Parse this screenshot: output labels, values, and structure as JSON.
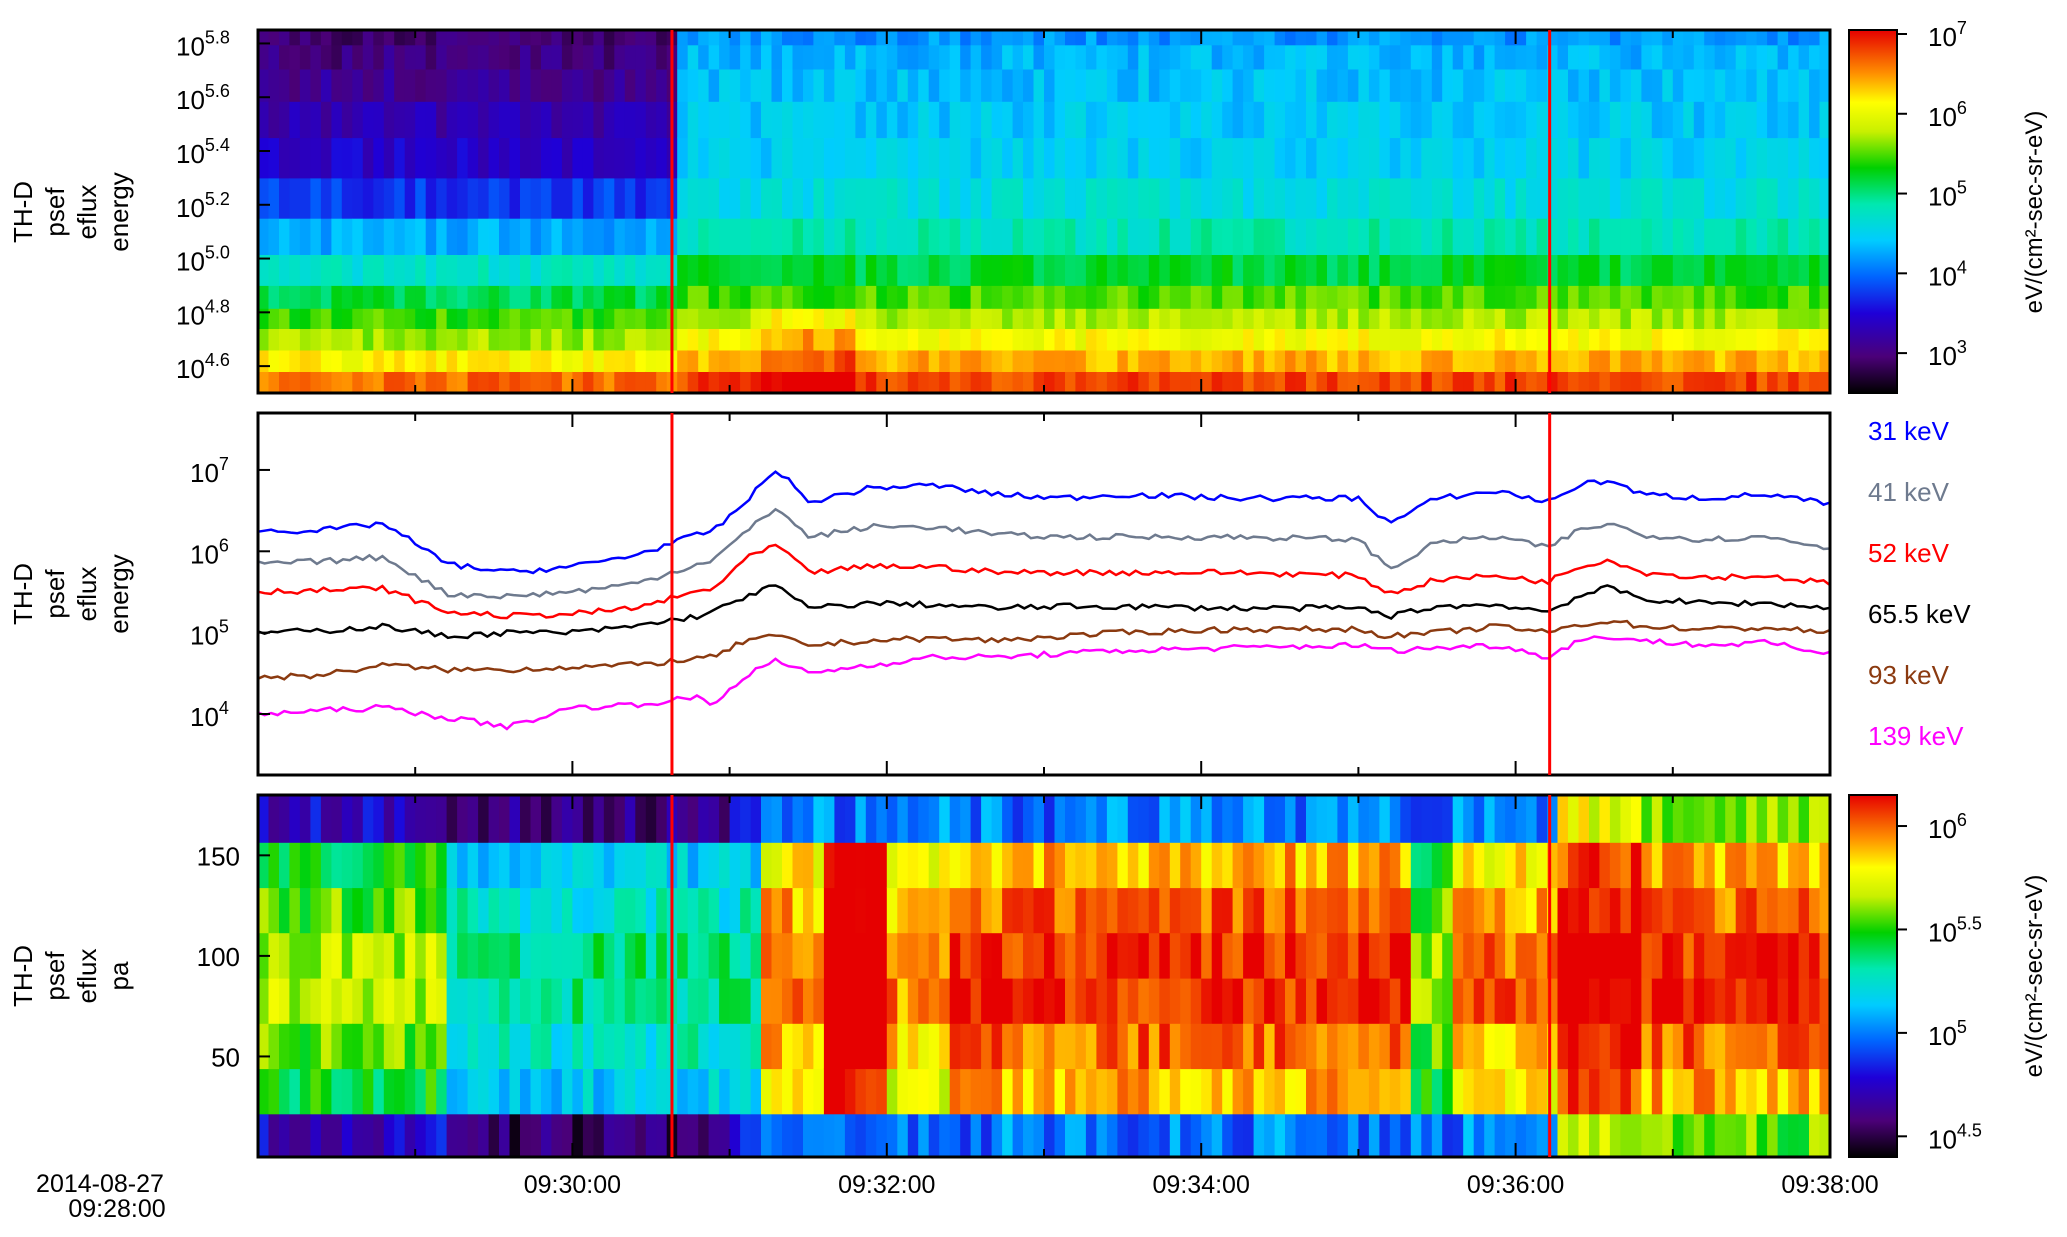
{
  "date_label": "2014-08-27",
  "start_time_label": "09:28:00",
  "x_ticks": [
    "09:30:00",
    "09:32:00",
    "09:34:00",
    "09:36:00",
    "09:38:00"
  ],
  "event_markers": [
    "09:30:38",
    "09:36:13"
  ],
  "colors": {
    "marker": "#ff0000"
  },
  "panels": {
    "energy_spectrogram": {
      "ylabel": [
        "TH-D",
        "psef",
        "eflux",
        "energy"
      ],
      "y_ticks": [
        {
          "base": "10",
          "exp": "4.6"
        },
        {
          "base": "10",
          "exp": "4.8"
        },
        {
          "base": "10",
          "exp": "5.0"
        },
        {
          "base": "10",
          "exp": "5.2"
        },
        {
          "base": "10",
          "exp": "5.4"
        },
        {
          "base": "10",
          "exp": "5.6"
        },
        {
          "base": "10",
          "exp": "5.8"
        }
      ],
      "colorbar": {
        "label": "eV/(cm²-sec-sr-eV)",
        "ticks": [
          {
            "base": "10",
            "exp": "3"
          },
          {
            "base": "10",
            "exp": "4"
          },
          {
            "base": "10",
            "exp": "5"
          },
          {
            "base": "10",
            "exp": "6"
          },
          {
            "base": "10",
            "exp": "7"
          }
        ]
      }
    },
    "energy_lines": {
      "ylabel": [
        "TH-D",
        "psef",
        "eflux",
        "energy"
      ],
      "y_ticks": [
        {
          "base": "10",
          "exp": "4"
        },
        {
          "base": "10",
          "exp": "5"
        },
        {
          "base": "10",
          "exp": "6"
        },
        {
          "base": "10",
          "exp": "7"
        }
      ],
      "legend": [
        {
          "label": "31  keV",
          "color": "#0000ff"
        },
        {
          "label": "41  keV",
          "color": "#6e7a8e"
        },
        {
          "label": "52  keV",
          "color": "#ff0000"
        },
        {
          "label": "65.5 keV",
          "color": "#000000"
        },
        {
          "label": "93  keV",
          "color": "#8b3a10"
        },
        {
          "label": "139  keV",
          "color": "#ff00ff"
        }
      ]
    },
    "pa_spectrogram": {
      "ylabel": [
        "TH-D",
        "psef",
        "eflux",
        "pa"
      ],
      "y_ticks": [
        "50",
        "100",
        "150"
      ],
      "colorbar": {
        "label": "eV/(cm²-sec-sr-eV)",
        "ticks": [
          {
            "base": "10",
            "exp": "4.5"
          },
          {
            "base": "10",
            "exp": "5"
          },
          {
            "base": "10",
            "exp": "5.5"
          },
          {
            "base": "10",
            "exp": "6"
          }
        ]
      }
    }
  },
  "chart_data": [
    {
      "type": "heatmap",
      "x_range_min": [
        0,
        10
      ],
      "y_log_range": [
        4.5,
        5.85
      ],
      "energy_bins_log": [
        4.54,
        4.62,
        4.7,
        4.78,
        4.85,
        4.95,
        5.08,
        5.22,
        5.38,
        5.52,
        5.65,
        5.76,
        5.83
      ],
      "color_log_range": [
        2.5,
        7.0
      ],
      "profile_pre": [
        6.6,
        6.1,
        5.65,
        5.4,
        5.1,
        4.7,
        4.25,
        3.75,
        3.4,
        3.25,
        3.1,
        3.0,
        2.9
      ],
      "profile_post": [
        6.75,
        6.35,
        6.05,
        5.7,
        5.45,
        5.15,
        4.8,
        4.6,
        4.45,
        4.4,
        4.35,
        4.3,
        4.15
      ],
      "grid": true
    },
    {
      "type": "line",
      "x_range_min": [
        0,
        10
      ],
      "y_log_range": [
        3.25,
        7.7
      ],
      "x": [
        0,
        0.4,
        0.8,
        1.2,
        1.6,
        2.0,
        2.4,
        2.8,
        2.9,
        3.1,
        3.3,
        3.5,
        3.9,
        4.3,
        4.7,
        5.1,
        5.5,
        6.2,
        7.0,
        7.2,
        7.5,
        7.9,
        8.2,
        8.4,
        8.6,
        8.8,
        9.2,
        9.6,
        10.0
      ],
      "series": [
        {
          "name": "31  keV",
          "values": [
            1800000.0,
            1800000.0,
            2200000.0,
            700000.0,
            550000.0,
            650000.0,
            900000.0,
            1600000.0,
            1800000.0,
            4000000.0,
            10500000.0,
            4000000.0,
            6000000.0,
            6500000.0,
            5000000.0,
            4500000.0,
            5000000.0,
            4500000.0,
            4500000.0,
            2200000.0,
            4500000.0,
            5500000.0,
            4000000.0,
            6500000.0,
            7500000.0,
            5000000.0,
            4500000.0,
            5000000.0,
            3800000.0
          ]
        },
        {
          "name": "41  keV",
          "values": [
            700000.0,
            750000.0,
            850000.0,
            300000.0,
            280000.0,
            320000.0,
            400000.0,
            700000.0,
            800000.0,
            1700000.0,
            3500000.0,
            1500000.0,
            2000000.0,
            2000000.0,
            1600000.0,
            1500000.0,
            1500000.0,
            1500000.0,
            1400000.0,
            600000.0,
            1300000.0,
            1500000.0,
            1100000.0,
            1800000.0,
            2200000.0,
            1600000.0,
            1400000.0,
            1500000.0,
            1100000.0
          ]
        },
        {
          "name": "52  keV",
          "values": [
            320000.0,
            330000.0,
            350000.0,
            180000.0,
            160000.0,
            170000.0,
            200000.0,
            320000.0,
            350000.0,
            800000.0,
            1200000.0,
            550000.0,
            650000.0,
            650000.0,
            550000.0,
            550000.0,
            550000.0,
            550000.0,
            500000.0,
            300000.0,
            450000.0,
            500000.0,
            420000.0,
            650000.0,
            800000.0,
            550000.0,
            480000.0,
            500000.0,
            400000.0
          ]
        },
        {
          "name": "65.5 keV",
          "values": [
            100000.0,
            105000.0,
            120000.0,
            90000.0,
            100000.0,
            100000.0,
            120000.0,
            160000.0,
            180000.0,
            280000.0,
            380000.0,
            200000.0,
            230000.0,
            220000.0,
            200000.0,
            210000.0,
            210000.0,
            200000.0,
            200000.0,
            160000.0,
            210000.0,
            220000.0,
            180000.0,
            280000.0,
            360000.0,
            260000.0,
            230000.0,
            230000.0,
            200000.0
          ]
        },
        {
          "name": "93  keV",
          "values": [
            28000.0,
            30000.0,
            40000.0,
            35000.0,
            35000.0,
            38000.0,
            40000.0,
            48000.0,
            50000.0,
            80000.0,
            90000.0,
            70000.0,
            80000.0,
            85000.0,
            80000.0,
            90000.0,
            100000.0,
            110000.0,
            110000.0,
            90000.0,
            100000.0,
            120000.0,
            100000.0,
            125000.0,
            140000.0,
            120000.0,
            110000.0,
            115000.0,
            100000.0
          ]
        },
        {
          "name": "139  keV",
          "values": [
            10000.0,
            11000.0,
            12000.0,
            9000.0,
            7000.0,
            12000.0,
            13000.0,
            16000.0,
            13000.0,
            30000.0,
            45000.0,
            32000.0,
            40000.0,
            50000.0,
            50000.0,
            55000.0,
            60000.0,
            65000.0,
            70000.0,
            60000.0,
            65000.0,
            70000.0,
            50000.0,
            80000.0,
            90000.0,
            80000.0,
            70000.0,
            75000.0,
            55000.0
          ]
        }
      ],
      "grid": false
    },
    {
      "type": "heatmap",
      "x_range_min": [
        0,
        10
      ],
      "y_range": [
        0,
        180
      ],
      "pa_bins": [
        10,
        33,
        55,
        78,
        100,
        123,
        145,
        168
      ],
      "color_log_range": [
        4.4,
        6.15
      ],
      "grid": true
    }
  ]
}
